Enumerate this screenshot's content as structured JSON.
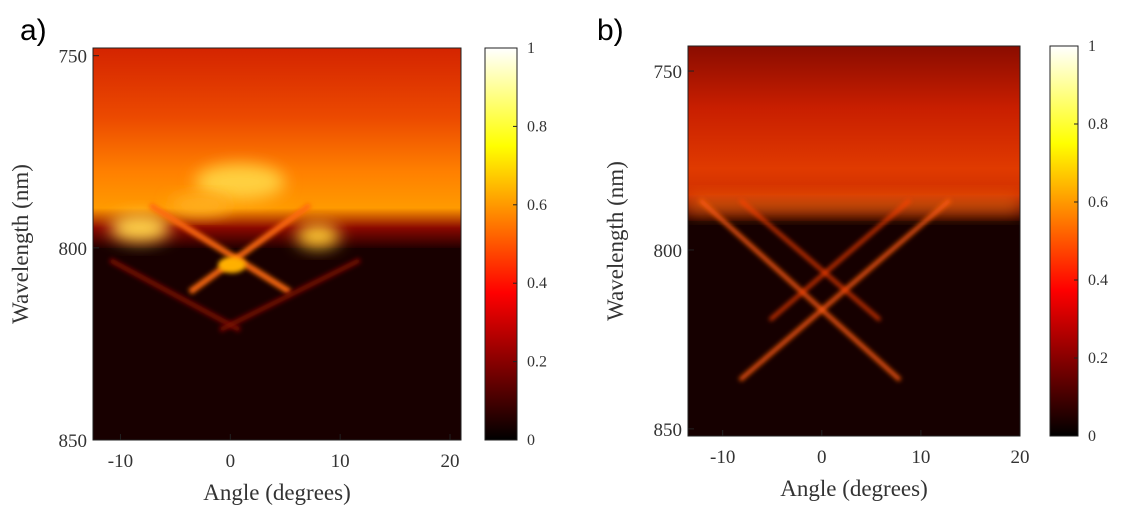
{
  "chart_data": [
    {
      "type": "heatmap",
      "panel_label": "a)",
      "xlabel": "Angle (degrees)",
      "ylabel": "Wavelength (nm)",
      "xlim": [
        -12.5,
        21
      ],
      "ylim": [
        748,
        850
      ],
      "y_inverted": true,
      "xticks": [
        -10,
        0,
        10,
        20
      ],
      "yticks": [
        750,
        800,
        850
      ],
      "colormap": "hot",
      "clim": [
        0,
        1
      ],
      "cticks": [
        0,
        0.2,
        0.4,
        0.6,
        0.8,
        1
      ]
    },
    {
      "type": "heatmap",
      "panel_label": "b)",
      "xlabel": "Angle (degrees)",
      "ylabel": "Wavelength (nm)",
      "xlim": [
        -13.5,
        20
      ],
      "ylim": [
        743,
        852
      ],
      "y_inverted": true,
      "xticks": [
        -10,
        0,
        10,
        20
      ],
      "yticks": [
        750,
        800,
        850
      ],
      "colormap": "hot",
      "clim": [
        0,
        1
      ],
      "cticks": [
        0,
        0.2,
        0.4,
        0.6,
        0.8,
        1
      ]
    }
  ]
}
